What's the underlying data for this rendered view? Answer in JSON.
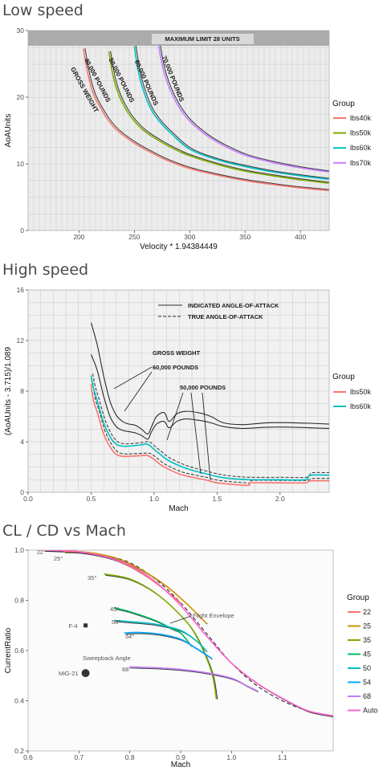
{
  "chart_data": [
    {
      "type": "line",
      "title": "Low speed",
      "xlabel": "Velocity * 1.94384449",
      "ylabel": "AoAUnits",
      "xlim": [
        154,
        426
      ],
      "ylim": [
        0,
        30
      ],
      "xticks": [
        200,
        250,
        300,
        350,
        400
      ],
      "xtick_labels": [
        "200",
        "250",
        "300",
        "350",
        "400"
      ],
      "yticks": [
        0,
        10,
        20,
        30
      ],
      "ytick_labels": [
        "0",
        "10",
        "20",
        "30"
      ],
      "legend": {
        "title": "Group",
        "position": "right"
      },
      "series": [
        {
          "name": "lbs40k",
          "color": "#F8766D",
          "points": [
            [
              204,
              27.2
            ],
            [
              208,
              23.5
            ],
            [
              213,
              20.5
            ],
            [
              220,
              18.2
            ],
            [
              228,
              16.2
            ],
            [
              236,
              14.8
            ],
            [
              250,
              13.1
            ],
            [
              265,
              11.7
            ],
            [
              280,
              10.5
            ],
            [
              300,
              9.3
            ],
            [
              325,
              8.3
            ],
            [
              350,
              7.5
            ],
            [
              375,
              6.9
            ],
            [
              400,
              6.4
            ],
            [
              425,
              6.0
            ]
          ]
        },
        {
          "name": "lbs50k",
          "color": "#7CAE00",
          "points": [
            [
              227,
              26.8
            ],
            [
              231,
              23.0
            ],
            [
              236,
              20.3
            ],
            [
              243,
              18.0
            ],
            [
              250,
              16.4
            ],
            [
              260,
              14.8
            ],
            [
              275,
              13.2
            ],
            [
              290,
              11.9
            ],
            [
              300,
              11.2
            ],
            [
              325,
              9.9
            ],
            [
              350,
              8.9
            ],
            [
              375,
              8.2
            ],
            [
              400,
              7.6
            ],
            [
              425,
              7.1
            ]
          ]
        },
        {
          "name": "lbs60k",
          "color": "#00BFC4",
          "points": [
            [
              250,
              27.6
            ],
            [
              254,
              23.5
            ],
            [
              259,
              20.6
            ],
            [
              265,
              18.2
            ],
            [
              273,
              16.3
            ],
            [
              283,
              14.6
            ],
            [
              300,
              12.2
            ],
            [
              325,
              10.6
            ],
            [
              350,
              9.6
            ],
            [
              375,
              8.8
            ],
            [
              400,
              8.2
            ],
            [
              425,
              7.7
            ]
          ]
        },
        {
          "name": "lbs70k",
          "color": "#C77CFF",
          "points": [
            [
              272,
              27.6
            ],
            [
              276,
              24.2
            ],
            [
              282,
              21.2
            ],
            [
              290,
              18.6
            ],
            [
              300,
              16.4
            ],
            [
              315,
              14.3
            ],
            [
              330,
              12.8
            ],
            [
              350,
              11.3
            ],
            [
              375,
              10.2
            ],
            [
              400,
              9.4
            ],
            [
              425,
              8.8
            ]
          ]
        }
      ],
      "annotations": [
        "MAXIMUM LIMIT 28 UNITS",
        "GROSS WEIGHT",
        "40,000 POUNDS",
        "50,000 POUNDS",
        "60,000 POUNDS",
        "70,000 POUNDS"
      ]
    },
    {
      "type": "line",
      "title": "High speed",
      "xlabel": "Mach",
      "ylabel": "(AoAUnits - 3.715)/1.089",
      "xlim": [
        0,
        2.39
      ],
      "ylim": [
        0,
        16
      ],
      "xticks": [
        0,
        0.5,
        1.0,
        1.5,
        2.0
      ],
      "xtick_labels": [
        "0.0",
        "0.5",
        "1.0",
        "1.5",
        "2.0"
      ],
      "yticks": [
        0,
        4,
        8,
        12,
        16
      ],
      "ytick_labels": [
        "0",
        "4",
        "8",
        "12",
        "16"
      ],
      "legend": {
        "title": "Group",
        "position": "right"
      },
      "series": [
        {
          "name": "lbs50k",
          "color": "#F8766D",
          "points": [
            [
              0.5,
              8.5
            ],
            [
              0.52,
              7.2
            ],
            [
              0.55,
              6.3
            ],
            [
              0.6,
              4.6
            ],
            [
              0.65,
              3.6
            ],
            [
              0.7,
              3.0
            ],
            [
              0.75,
              2.85
            ],
            [
              0.8,
              2.85
            ],
            [
              0.9,
              2.9
            ],
            [
              0.95,
              2.9
            ],
            [
              1.0,
              2.6
            ],
            [
              1.05,
              2.2
            ],
            [
              1.1,
              1.9
            ],
            [
              1.2,
              1.45
            ],
            [
              1.3,
              1.2
            ],
            [
              1.4,
              1.0
            ],
            [
              1.5,
              0.75
            ],
            [
              1.6,
              0.65
            ],
            [
              1.75,
              0.55
            ],
            [
              1.77,
              0.75
            ],
            [
              2.0,
              0.75
            ],
            [
              2.2,
              0.75
            ],
            [
              2.24,
              0.9
            ],
            [
              2.39,
              0.9
            ]
          ]
        },
        {
          "name": "lbs60k",
          "color": "#00BFC4",
          "points": [
            [
              0.5,
              9.2
            ],
            [
              0.52,
              8.2
            ],
            [
              0.55,
              7.2
            ],
            [
              0.6,
              5.5
            ],
            [
              0.65,
              4.4
            ],
            [
              0.7,
              3.8
            ],
            [
              0.75,
              3.65
            ],
            [
              0.8,
              3.65
            ],
            [
              0.9,
              3.75
            ],
            [
              0.95,
              3.8
            ],
            [
              1.0,
              3.4
            ],
            [
              1.05,
              3.0
            ],
            [
              1.1,
              2.6
            ],
            [
              1.2,
              2.1
            ],
            [
              1.3,
              1.75
            ],
            [
              1.4,
              1.5
            ],
            [
              1.5,
              1.25
            ],
            [
              1.6,
              1.1
            ],
            [
              1.75,
              1.0
            ],
            [
              2.0,
              1.0
            ],
            [
              2.2,
              1.0
            ],
            [
              2.24,
              1.35
            ],
            [
              2.39,
              1.35
            ]
          ]
        }
      ],
      "reference_curves": [
        {
          "style": "solid",
          "points": [
            [
              0.5,
              13.4
            ],
            [
              0.55,
              11.6
            ],
            [
              0.6,
              9.2
            ],
            [
              0.65,
              7.2
            ],
            [
              0.7,
              6.1
            ],
            [
              0.75,
              5.6
            ],
            [
              0.8,
              5.4
            ],
            [
              0.85,
              5.3
            ],
            [
              0.9,
              5.0
            ],
            [
              0.95,
              4.6
            ],
            [
              0.98,
              5.2
            ],
            [
              1.02,
              6.0
            ],
            [
              1.08,
              6.3
            ],
            [
              1.12,
              5.6
            ],
            [
              1.18,
              6.2
            ],
            [
              1.25,
              6.4
            ],
            [
              1.35,
              6.3
            ],
            [
              1.45,
              6.0
            ],
            [
              1.55,
              5.5
            ],
            [
              1.7,
              5.35
            ],
            [
              1.9,
              5.5
            ],
            [
              2.1,
              5.5
            ],
            [
              2.39,
              5.4
            ]
          ]
        },
        {
          "style": "solid",
          "points": [
            [
              0.5,
              10.9
            ],
            [
              0.55,
              9.6
            ],
            [
              0.6,
              7.6
            ],
            [
              0.65,
              6.0
            ],
            [
              0.7,
              5.2
            ],
            [
              0.75,
              4.9
            ],
            [
              0.8,
              4.8
            ],
            [
              0.85,
              4.7
            ],
            [
              0.9,
              4.5
            ],
            [
              0.95,
              4.2
            ],
            [
              0.98,
              4.8
            ],
            [
              1.02,
              5.4
            ],
            [
              1.08,
              5.6
            ],
            [
              1.12,
              5.1
            ],
            [
              1.18,
              5.6
            ],
            [
              1.25,
              5.8
            ],
            [
              1.35,
              5.7
            ],
            [
              1.45,
              5.5
            ],
            [
              1.55,
              5.2
            ],
            [
              1.7,
              5.05
            ],
            [
              1.9,
              5.15
            ],
            [
              2.1,
              5.15
            ],
            [
              2.39,
              5.05
            ]
          ]
        }
      ],
      "annotations": [
        "INDICATED ANGLE-OF-ATTACK",
        "TRUE ANGLE-OF-ATTACK",
        "GROSS WEIGHT",
        "60,000 POUNDS",
        "50,000 POUNDS"
      ]
    },
    {
      "type": "line",
      "title": "CL / CD vs Mach",
      "xlabel": "Mach",
      "ylabel": "CurrentRatio",
      "xlim": [
        0.6,
        1.2
      ],
      "ylim": [
        0.2,
        1.0
      ],
      "xticks": [
        0.6,
        0.7,
        0.8,
        0.9,
        1.0,
        1.1
      ],
      "xtick_labels": [
        "0.6",
        "0.7",
        "0.8",
        "0.9",
        "1.0",
        "1.1"
      ],
      "yticks": [
        0.2,
        0.4,
        0.6,
        0.8,
        1.0
      ],
      "ytick_labels": [
        "0.2",
        "0.4",
        "0.6",
        "0.8",
        "1.0"
      ],
      "legend": {
        "title": "Group",
        "position": "right"
      },
      "series": [
        {
          "name": "22",
          "color": "#F8766D",
          "points": [
            [
              0.63,
              1.0
            ],
            [
              0.68,
              0.998
            ],
            [
              0.73,
              0.985
            ],
            [
              0.78,
              0.955
            ],
            [
              0.83,
              0.9
            ],
            [
              0.87,
              0.84
            ],
            [
              0.9,
              0.79
            ]
          ]
        },
        {
          "name": "25",
          "color": "#CD9600",
          "points": [
            [
              0.67,
              0.995
            ],
            [
              0.72,
              0.99
            ],
            [
              0.77,
              0.97
            ],
            [
              0.82,
              0.925
            ],
            [
              0.87,
              0.86
            ],
            [
              0.91,
              0.79
            ],
            [
              0.95,
              0.71
            ]
          ]
        },
        {
          "name": "35",
          "color": "#7CAE00",
          "points": [
            [
              0.75,
              0.905
            ],
            [
              0.8,
              0.885
            ],
            [
              0.85,
              0.83
            ],
            [
              0.9,
              0.74
            ],
            [
              0.93,
              0.66
            ],
            [
              0.96,
              0.52
            ],
            [
              0.97,
              0.41
            ]
          ]
        },
        {
          "name": "45",
          "color": "#00BE67",
          "points": [
            [
              0.77,
              0.77
            ],
            [
              0.8,
              0.755
            ],
            [
              0.85,
              0.72
            ],
            [
              0.88,
              0.69
            ],
            [
              0.9,
              0.67
            ],
            [
              0.92,
              0.62
            ]
          ]
        },
        {
          "name": "50",
          "color": "#00BFC4",
          "points": [
            [
              0.77,
              0.72
            ],
            [
              0.8,
              0.715
            ],
            [
              0.85,
              0.705
            ],
            [
              0.9,
              0.68
            ],
            [
              0.93,
              0.64
            ],
            [
              0.95,
              0.6
            ]
          ]
        },
        {
          "name": "54",
          "color": "#00A9FF",
          "points": [
            [
              0.79,
              0.67
            ],
            [
              0.82,
              0.672
            ],
            [
              0.86,
              0.665
            ],
            [
              0.9,
              0.645
            ],
            [
              0.93,
              0.61
            ],
            [
              0.96,
              0.57
            ]
          ]
        },
        {
          "name": "68",
          "color": "#C77CFF",
          "points": [
            [
              0.8,
              0.535
            ],
            [
              0.85,
              0.532
            ],
            [
              0.9,
              0.525
            ],
            [
              0.95,
              0.512
            ],
            [
              1.0,
              0.49
            ],
            [
              1.03,
              0.46
            ],
            [
              1.05,
              0.44
            ]
          ]
        },
        {
          "name": "Auto",
          "color": "#FF61CC",
          "points": [
            [
              0.64,
              1.0
            ],
            [
              0.7,
              0.993
            ],
            [
              0.75,
              0.975
            ],
            [
              0.8,
              0.94
            ],
            [
              0.85,
              0.875
            ],
            [
              0.9,
              0.78
            ],
            [
              0.95,
              0.66
            ],
            [
              1.0,
              0.55
            ],
            [
              1.05,
              0.47
            ],
            [
              1.1,
              0.41
            ],
            [
              1.15,
              0.36
            ],
            [
              1.2,
              0.34
            ]
          ]
        }
      ],
      "reference_curves": [
        {
          "style": "dashed",
          "points": [
            [
              0.64,
              1.0
            ],
            [
              0.7,
              0.995
            ],
            [
              0.75,
              0.98
            ],
            [
              0.8,
              0.95
            ],
            [
              0.85,
              0.885
            ],
            [
              0.9,
              0.79
            ],
            [
              0.95,
              0.67
            ],
            [
              1.0,
              0.55
            ],
            [
              1.05,
              0.46
            ],
            [
              1.1,
              0.4
            ],
            [
              1.15,
              0.36
            ],
            [
              1.2,
              0.34
            ]
          ]
        }
      ],
      "reference_points": [
        {
          "label": "F-4",
          "x": 0.713,
          "y": 0.7,
          "marker": "square"
        },
        {
          "label": "MiG-21",
          "x": 0.713,
          "y": 0.51,
          "marker": "circle"
        }
      ],
      "annotations": [
        "22",
        "25°",
        "35°",
        "45°",
        "50°",
        "54°",
        "68°",
        "Sweepback Angle",
        "Flight Envelope"
      ]
    }
  ]
}
